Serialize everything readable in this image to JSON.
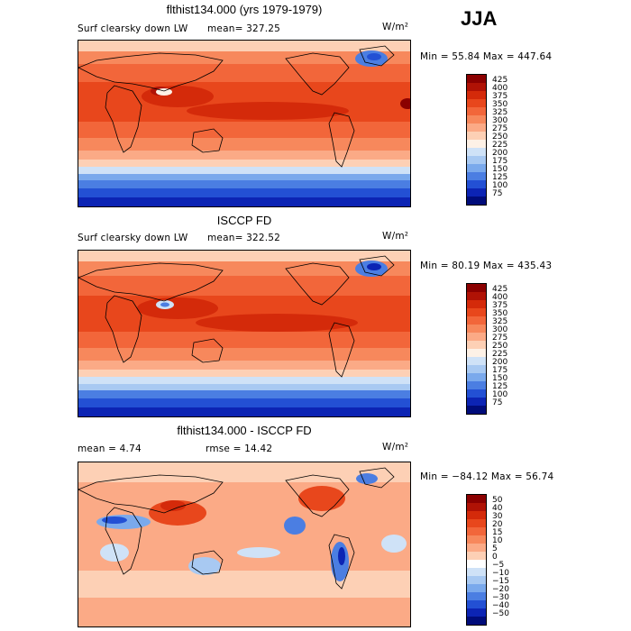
{
  "season": "JJA",
  "units": "W/m²",
  "panels": [
    {
      "title": "flthist134.000 (yrs 1979-1979)",
      "variable": "Surf clearsky down LW",
      "mean_text": "mean= 327.25",
      "stats": "Min =  55.84 Max = 447.64",
      "colorbar": {
        "labels": [
          "425",
          "400",
          "375",
          "350",
          "325",
          "300",
          "275",
          "250",
          "225",
          "200",
          "175",
          "150",
          "125",
          "100",
          "75"
        ],
        "colors": [
          "#8b0000",
          "#b01205",
          "#d42a0a",
          "#e8471c",
          "#f2663a",
          "#f7885c",
          "#fbaa86",
          "#fdd0b5",
          "#fdf1e6",
          "#cfe2f7",
          "#a8c9f2",
          "#7aa9ec",
          "#4b7ee2",
          "#2350d4",
          "#0c24b4",
          "#000c7a"
        ]
      }
    },
    {
      "title": "ISCCP FD",
      "variable": "Surf clearsky down LW",
      "mean_text": "mean= 322.52",
      "stats": "Min =  80.19 Max = 435.43",
      "colorbar": {
        "labels": [
          "425",
          "400",
          "375",
          "350",
          "325",
          "300",
          "275",
          "250",
          "225",
          "200",
          "175",
          "150",
          "125",
          "100",
          "75"
        ],
        "colors": [
          "#8b0000",
          "#b01205",
          "#d42a0a",
          "#e8471c",
          "#f2663a",
          "#f7885c",
          "#fbaa86",
          "#fdd0b5",
          "#fdf1e6",
          "#cfe2f7",
          "#a8c9f2",
          "#7aa9ec",
          "#4b7ee2",
          "#2350d4",
          "#0c24b4",
          "#000c7a"
        ]
      }
    },
    {
      "title": "flthist134.000 - ISCCP FD",
      "mean_text": "mean =   4.74",
      "rmse_text": "rmse =  14.42",
      "stats": "Min = −84.12 Max =  56.74",
      "colorbar": {
        "labels": [
          "50",
          "40",
          "30",
          "20",
          "15",
          "10",
          "5",
          "0",
          "−5",
          "−10",
          "−15",
          "−20",
          "−30",
          "−40",
          "−50"
        ],
        "colors": [
          "#8b0000",
          "#b01205",
          "#d42a0a",
          "#e8471c",
          "#f2663a",
          "#f7885c",
          "#fbaa86",
          "#fdd0b5",
          "#ffffff",
          "#cfe2f7",
          "#a8c9f2",
          "#7aa9ec",
          "#4b7ee2",
          "#2350d4",
          "#0c24b4",
          "#000c7a"
        ]
      }
    }
  ]
}
